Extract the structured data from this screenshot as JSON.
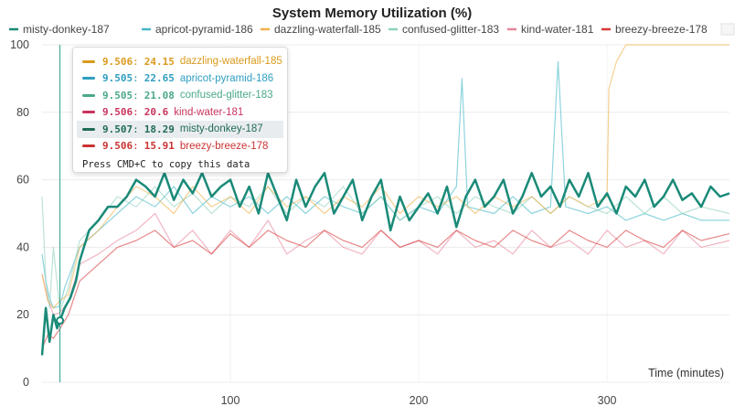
{
  "chart_data": {
    "type": "line",
    "title": "System Memory Utilization (%)",
    "xlabel": "Time (minutes)",
    "ylabel": "",
    "xlim": [
      0,
      365
    ],
    "ylim": [
      0,
      100
    ],
    "x_ticks": [
      100,
      200,
      300
    ],
    "y_ticks": [
      0,
      20,
      40,
      60,
      80,
      100
    ],
    "grid": true,
    "legend_position": "top",
    "hover_x": 9.506,
    "series": [
      {
        "name": "misty-donkey-187",
        "color": "#1a8a78",
        "points": [
          [
            0,
            8
          ],
          [
            2,
            22
          ],
          [
            4,
            12
          ],
          [
            6,
            20
          ],
          [
            8,
            16
          ],
          [
            9.5,
            18.3
          ],
          [
            12,
            22
          ],
          [
            15,
            25
          ],
          [
            18,
            30
          ],
          [
            20,
            36
          ],
          [
            25,
            45
          ],
          [
            30,
            48
          ],
          [
            35,
            52
          ],
          [
            40,
            52
          ],
          [
            45,
            55
          ],
          [
            50,
            60
          ],
          [
            55,
            58
          ],
          [
            60,
            55
          ],
          [
            65,
            62
          ],
          [
            70,
            54
          ],
          [
            75,
            60
          ],
          [
            80,
            56
          ],
          [
            85,
            62
          ],
          [
            90,
            55
          ],
          [
            95,
            58
          ],
          [
            100,
            60
          ],
          [
            105,
            52
          ],
          [
            110,
            58
          ],
          [
            115,
            50
          ],
          [
            120,
            62
          ],
          [
            125,
            55
          ],
          [
            130,
            48
          ],
          [
            135,
            60
          ],
          [
            140,
            52
          ],
          [
            145,
            58
          ],
          [
            150,
            62
          ],
          [
            155,
            50
          ],
          [
            160,
            55
          ],
          [
            165,
            60
          ],
          [
            170,
            48
          ],
          [
            175,
            55
          ],
          [
            180,
            60
          ],
          [
            185,
            45
          ],
          [
            190,
            55
          ],
          [
            195,
            48
          ],
          [
            200,
            52
          ],
          [
            205,
            56
          ],
          [
            210,
            50
          ],
          [
            215,
            58
          ],
          [
            220,
            46
          ],
          [
            225,
            55
          ],
          [
            230,
            60
          ],
          [
            235,
            52
          ],
          [
            240,
            55
          ],
          [
            245,
            60
          ],
          [
            250,
            50
          ],
          [
            255,
            55
          ],
          [
            260,
            62
          ],
          [
            265,
            55
          ],
          [
            270,
            58
          ],
          [
            275,
            52
          ],
          [
            280,
            60
          ],
          [
            285,
            55
          ],
          [
            290,
            62
          ],
          [
            295,
            52
          ],
          [
            300,
            56
          ],
          [
            305,
            50
          ],
          [
            310,
            58
          ],
          [
            315,
            55
          ],
          [
            320,
            60
          ],
          [
            325,
            52
          ],
          [
            330,
            55
          ],
          [
            335,
            60
          ],
          [
            340,
            54
          ],
          [
            345,
            56
          ],
          [
            350,
            52
          ],
          [
            355,
            58
          ],
          [
            360,
            55
          ],
          [
            365,
            56
          ]
        ]
      },
      {
        "name": "apricot-pyramid-186",
        "color": "#45b7c8",
        "points": [
          [
            0,
            38
          ],
          [
            2,
            30
          ],
          [
            4,
            25
          ],
          [
            6,
            22
          ],
          [
            9.5,
            22.65
          ],
          [
            12,
            28
          ],
          [
            20,
            40
          ],
          [
            30,
            45
          ],
          [
            40,
            50
          ],
          [
            50,
            55
          ],
          [
            60,
            52
          ],
          [
            70,
            58
          ],
          [
            80,
            50
          ],
          [
            90,
            55
          ],
          [
            100,
            52
          ],
          [
            110,
            55
          ],
          [
            120,
            50
          ],
          [
            130,
            55
          ],
          [
            140,
            50
          ],
          [
            150,
            55
          ],
          [
            160,
            52
          ],
          [
            170,
            50
          ],
          [
            180,
            55
          ],
          [
            190,
            48
          ],
          [
            200,
            52
          ],
          [
            210,
            50
          ],
          [
            220,
            58
          ],
          [
            223,
            90
          ],
          [
            226,
            52
          ],
          [
            240,
            50
          ],
          [
            250,
            55
          ],
          [
            260,
            50
          ],
          [
            270,
            52
          ],
          [
            274,
            95
          ],
          [
            278,
            52
          ],
          [
            290,
            50
          ],
          [
            300,
            52
          ],
          [
            310,
            48
          ],
          [
            320,
            50
          ],
          [
            330,
            48
          ],
          [
            340,
            50
          ],
          [
            350,
            48
          ],
          [
            365,
            48
          ]
        ]
      },
      {
        "name": "dazzling-waterfall-185",
        "color": "#f0b04a",
        "points": [
          [
            0,
            32
          ],
          [
            3,
            24
          ],
          [
            6,
            22
          ],
          [
            9.5,
            24.15
          ],
          [
            14,
            26
          ],
          [
            20,
            40
          ],
          [
            30,
            45
          ],
          [
            40,
            52
          ],
          [
            50,
            58
          ],
          [
            60,
            55
          ],
          [
            70,
            50
          ],
          [
            80,
            58
          ],
          [
            90,
            52
          ],
          [
            100,
            55
          ],
          [
            110,
            50
          ],
          [
            120,
            58
          ],
          [
            130,
            52
          ],
          [
            140,
            55
          ],
          [
            150,
            50
          ],
          [
            160,
            55
          ],
          [
            170,
            52
          ],
          [
            180,
            58
          ],
          [
            190,
            50
          ],
          [
            200,
            55
          ],
          [
            210,
            52
          ],
          [
            220,
            55
          ],
          [
            230,
            50
          ],
          [
            240,
            55
          ],
          [
            250,
            52
          ],
          [
            260,
            55
          ],
          [
            270,
            50
          ],
          [
            280,
            55
          ],
          [
            290,
            52
          ],
          [
            300,
            55
          ],
          [
            301,
            87
          ],
          [
            305,
            95
          ],
          [
            310,
            100
          ],
          [
            320,
            100
          ],
          [
            330,
            100
          ],
          [
            340,
            100
          ],
          [
            350,
            100
          ],
          [
            365,
            100
          ]
        ]
      },
      {
        "name": "confused-glitter-183",
        "color": "#8fd1bd",
        "points": [
          [
            0,
            55
          ],
          [
            2,
            30
          ],
          [
            4,
            22
          ],
          [
            6,
            40
          ],
          [
            9.5,
            21.08
          ],
          [
            14,
            28
          ],
          [
            20,
            42
          ],
          [
            30,
            48
          ],
          [
            40,
            55
          ],
          [
            50,
            52
          ],
          [
            60,
            58
          ],
          [
            70,
            52
          ],
          [
            80,
            56
          ],
          [
            90,
            50
          ],
          [
            100,
            55
          ],
          [
            110,
            52
          ],
          [
            120,
            58
          ],
          [
            130,
            50
          ],
          [
            140,
            55
          ],
          [
            150,
            52
          ],
          [
            160,
            58
          ],
          [
            170,
            50
          ],
          [
            180,
            55
          ],
          [
            190,
            48
          ],
          [
            200,
            52
          ],
          [
            210,
            55
          ],
          [
            220,
            50
          ],
          [
            230,
            55
          ],
          [
            240,
            52
          ],
          [
            250,
            50
          ],
          [
            260,
            55
          ],
          [
            270,
            50
          ],
          [
            280,
            55
          ],
          [
            290,
            52
          ],
          [
            300,
            50
          ],
          [
            310,
            55
          ],
          [
            320,
            50
          ],
          [
            330,
            55
          ],
          [
            340,
            50
          ],
          [
            350,
            52
          ],
          [
            365,
            50
          ]
        ]
      },
      {
        "name": "kind-water-181",
        "color": "#e8849a",
        "points": [
          [
            0,
            32
          ],
          [
            3,
            25
          ],
          [
            6,
            20
          ],
          [
            9.5,
            20.6
          ],
          [
            14,
            24
          ],
          [
            20,
            35
          ],
          [
            30,
            38
          ],
          [
            40,
            42
          ],
          [
            50,
            45
          ],
          [
            60,
            50
          ],
          [
            70,
            40
          ],
          [
            80,
            45
          ],
          [
            90,
            38
          ],
          [
            100,
            45
          ],
          [
            110,
            40
          ],
          [
            120,
            48
          ],
          [
            130,
            38
          ],
          [
            140,
            42
          ],
          [
            150,
            45
          ],
          [
            160,
            40
          ],
          [
            170,
            38
          ],
          [
            180,
            45
          ],
          [
            190,
            40
          ],
          [
            200,
            42
          ],
          [
            210,
            38
          ],
          [
            220,
            45
          ],
          [
            230,
            40
          ],
          [
            240,
            42
          ],
          [
            250,
            38
          ],
          [
            260,
            45
          ],
          [
            270,
            40
          ],
          [
            280,
            42
          ],
          [
            290,
            38
          ],
          [
            300,
            45
          ],
          [
            310,
            40
          ],
          [
            320,
            42
          ],
          [
            330,
            38
          ],
          [
            340,
            45
          ],
          [
            350,
            40
          ],
          [
            365,
            42
          ]
        ]
      },
      {
        "name": "breezy-breeze-178",
        "color": "#d83a3a",
        "points": [
          [
            0,
            10
          ],
          [
            3,
            14
          ],
          [
            6,
            13
          ],
          [
            9.5,
            15.91
          ],
          [
            14,
            20
          ],
          [
            20,
            30
          ],
          [
            30,
            35
          ],
          [
            40,
            40
          ],
          [
            50,
            42
          ],
          [
            60,
            45
          ],
          [
            70,
            40
          ],
          [
            80,
            42
          ],
          [
            90,
            38
          ],
          [
            100,
            44
          ],
          [
            110,
            40
          ],
          [
            120,
            45
          ],
          [
            130,
            42
          ],
          [
            140,
            40
          ],
          [
            150,
            45
          ],
          [
            160,
            42
          ],
          [
            170,
            40
          ],
          [
            180,
            45
          ],
          [
            190,
            40
          ],
          [
            200,
            42
          ],
          [
            210,
            40
          ],
          [
            220,
            45
          ],
          [
            230,
            42
          ],
          [
            240,
            40
          ],
          [
            250,
            45
          ],
          [
            260,
            42
          ],
          [
            270,
            40
          ],
          [
            280,
            45
          ],
          [
            290,
            42
          ],
          [
            300,
            40
          ],
          [
            310,
            45
          ],
          [
            320,
            42
          ],
          [
            330,
            40
          ],
          [
            340,
            45
          ],
          [
            350,
            42
          ],
          [
            365,
            44
          ]
        ]
      }
    ]
  },
  "tooltip": {
    "rows": [
      {
        "series": "dazzling-waterfall-185",
        "x": "9.506",
        "y": "24.15",
        "color": "#d99a1c",
        "highlight": false
      },
      {
        "series": "apricot-pyramid-186",
        "x": "9.505",
        "y": "22.65",
        "color": "#2f9fc0",
        "highlight": false
      },
      {
        "series": "confused-glitter-183",
        "x": "9.505",
        "y": "21.08",
        "color": "#4aa88c",
        "highlight": false
      },
      {
        "series": "kind-water-181",
        "x": "9.506",
        "y": "20.6",
        "color": "#c9335e",
        "highlight": false
      },
      {
        "series": "misty-donkey-187",
        "x": "9.507",
        "y": "18.29",
        "color": "#1f6b58",
        "highlight": true
      },
      {
        "series": "breezy-breeze-178",
        "x": "9.506",
        "y": "15.91",
        "color": "#cc3333",
        "highlight": false
      }
    ],
    "footer": "Press CMD+C to copy this data"
  }
}
